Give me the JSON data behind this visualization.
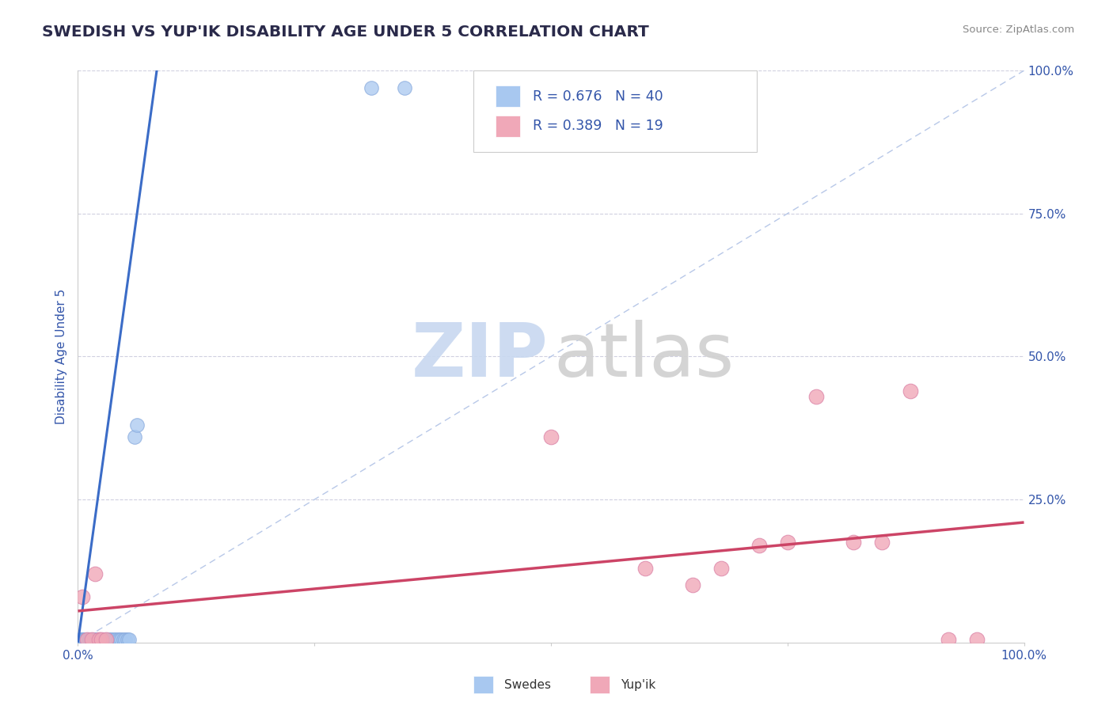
{
  "title": "SWEDISH VS YUP'IK DISABILITY AGE UNDER 5 CORRELATION CHART",
  "source": "Source: ZipAtlas.com",
  "ylabel": "Disability Age Under 5",
  "xlim": [
    0.0,
    1.0
  ],
  "ylim": [
    0.0,
    1.0
  ],
  "legend_r_swedish": "R = 0.676",
  "legend_n_swedish": "N = 40",
  "legend_r_yupik": "R = 0.389",
  "legend_n_yupik": "N = 19",
  "swedish_color": "#a8c8f0",
  "yupik_color": "#f0a8b8",
  "trend_swedish_color": "#3b6cc7",
  "trend_yupik_color": "#cc4466",
  "diag_color": "#b8c8e8",
  "watermark_zip_color": "#c8d8f0",
  "watermark_atlas_color": "#d0d0d0",
  "background_color": "#ffffff",
  "grid_color": "#d0d0e0",
  "title_color": "#2a2a4a",
  "axis_label_color": "#3355aa",
  "tick_label_color": "#3355aa",
  "swedish_dots": [
    [
      0.002,
      0.005
    ],
    [
      0.003,
      0.005
    ],
    [
      0.004,
      0.005
    ],
    [
      0.005,
      0.005
    ],
    [
      0.006,
      0.005
    ],
    [
      0.007,
      0.005
    ],
    [
      0.008,
      0.005
    ],
    [
      0.009,
      0.005
    ],
    [
      0.01,
      0.005
    ],
    [
      0.011,
      0.005
    ],
    [
      0.012,
      0.005
    ],
    [
      0.013,
      0.005
    ],
    [
      0.014,
      0.005
    ],
    [
      0.015,
      0.005
    ],
    [
      0.016,
      0.005
    ],
    [
      0.017,
      0.005
    ],
    [
      0.018,
      0.005
    ],
    [
      0.019,
      0.005
    ],
    [
      0.02,
      0.005
    ],
    [
      0.022,
      0.005
    ],
    [
      0.024,
      0.005
    ],
    [
      0.026,
      0.005
    ],
    [
      0.028,
      0.005
    ],
    [
      0.03,
      0.005
    ],
    [
      0.032,
      0.005
    ],
    [
      0.034,
      0.005
    ],
    [
      0.036,
      0.005
    ],
    [
      0.038,
      0.005
    ],
    [
      0.04,
      0.005
    ],
    [
      0.042,
      0.005
    ],
    [
      0.044,
      0.005
    ],
    [
      0.046,
      0.005
    ],
    [
      0.048,
      0.005
    ],
    [
      0.05,
      0.005
    ],
    [
      0.052,
      0.005
    ],
    [
      0.054,
      0.005
    ],
    [
      0.06,
      0.36
    ],
    [
      0.062,
      0.38
    ],
    [
      0.31,
      0.97
    ],
    [
      0.345,
      0.97
    ]
  ],
  "yupik_dots": [
    [
      0.005,
      0.08
    ],
    [
      0.01,
      0.005
    ],
    [
      0.015,
      0.005
    ],
    [
      0.018,
      0.12
    ],
    [
      0.022,
      0.005
    ],
    [
      0.025,
      0.005
    ],
    [
      0.03,
      0.005
    ],
    [
      0.5,
      0.36
    ],
    [
      0.6,
      0.13
    ],
    [
      0.65,
      0.1
    ],
    [
      0.68,
      0.13
    ],
    [
      0.72,
      0.17
    ],
    [
      0.75,
      0.175
    ],
    [
      0.78,
      0.43
    ],
    [
      0.82,
      0.175
    ],
    [
      0.85,
      0.175
    ],
    [
      0.88,
      0.44
    ],
    [
      0.92,
      0.005
    ],
    [
      0.95,
      0.005
    ]
  ],
  "swedish_trend_x": [
    0.0,
    0.085
  ],
  "swedish_trend_y": [
    0.0,
    1.02
  ],
  "yupik_trend_x": [
    0.0,
    1.0
  ],
  "yupik_trend_y": [
    0.055,
    0.21
  ],
  "grid_yticks": [
    0.25,
    0.5,
    0.75,
    1.0
  ],
  "grid_xticks": [
    0.25,
    0.5,
    0.75
  ]
}
